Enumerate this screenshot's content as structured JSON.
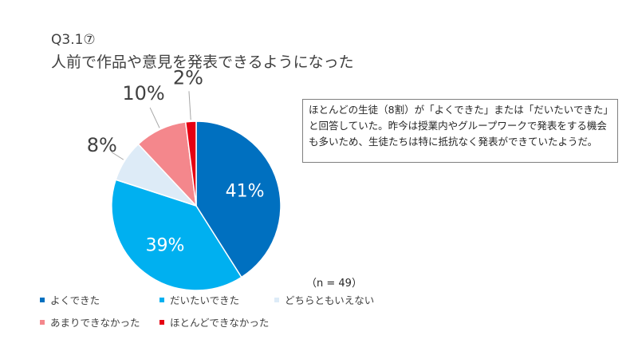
{
  "title": {
    "code": "Q3.1⑦",
    "main": "人前で作品や意見を発表できるようになった"
  },
  "callout": {
    "text": "ほとんどの生徒（8割）が「よくできた」または「だいたいできた」と回答していた。昨今は授業内やグループワークで発表をする機会も多いため、生徒たちは特に抵抗なく発表ができていたようだ。"
  },
  "n_label": "（n = 49）",
  "chart_data": {
    "type": "pie",
    "title": "",
    "categories": [
      "よくできた",
      "だいたいできた",
      "どちらともいえない",
      "あまりできなかった",
      "ほとんどできなかった"
    ],
    "values": [
      41,
      39,
      8,
      10,
      2
    ],
    "labels": [
      "41%",
      "39%",
      "8%",
      "10%",
      "2%"
    ],
    "colors": [
      "#0070C0",
      "#00B0F0",
      "#DDEBF7",
      "#F4878C",
      "#E60012"
    ],
    "legend_position": "bottom-left",
    "start_angle_deg": 0,
    "direction": "clockwise"
  }
}
